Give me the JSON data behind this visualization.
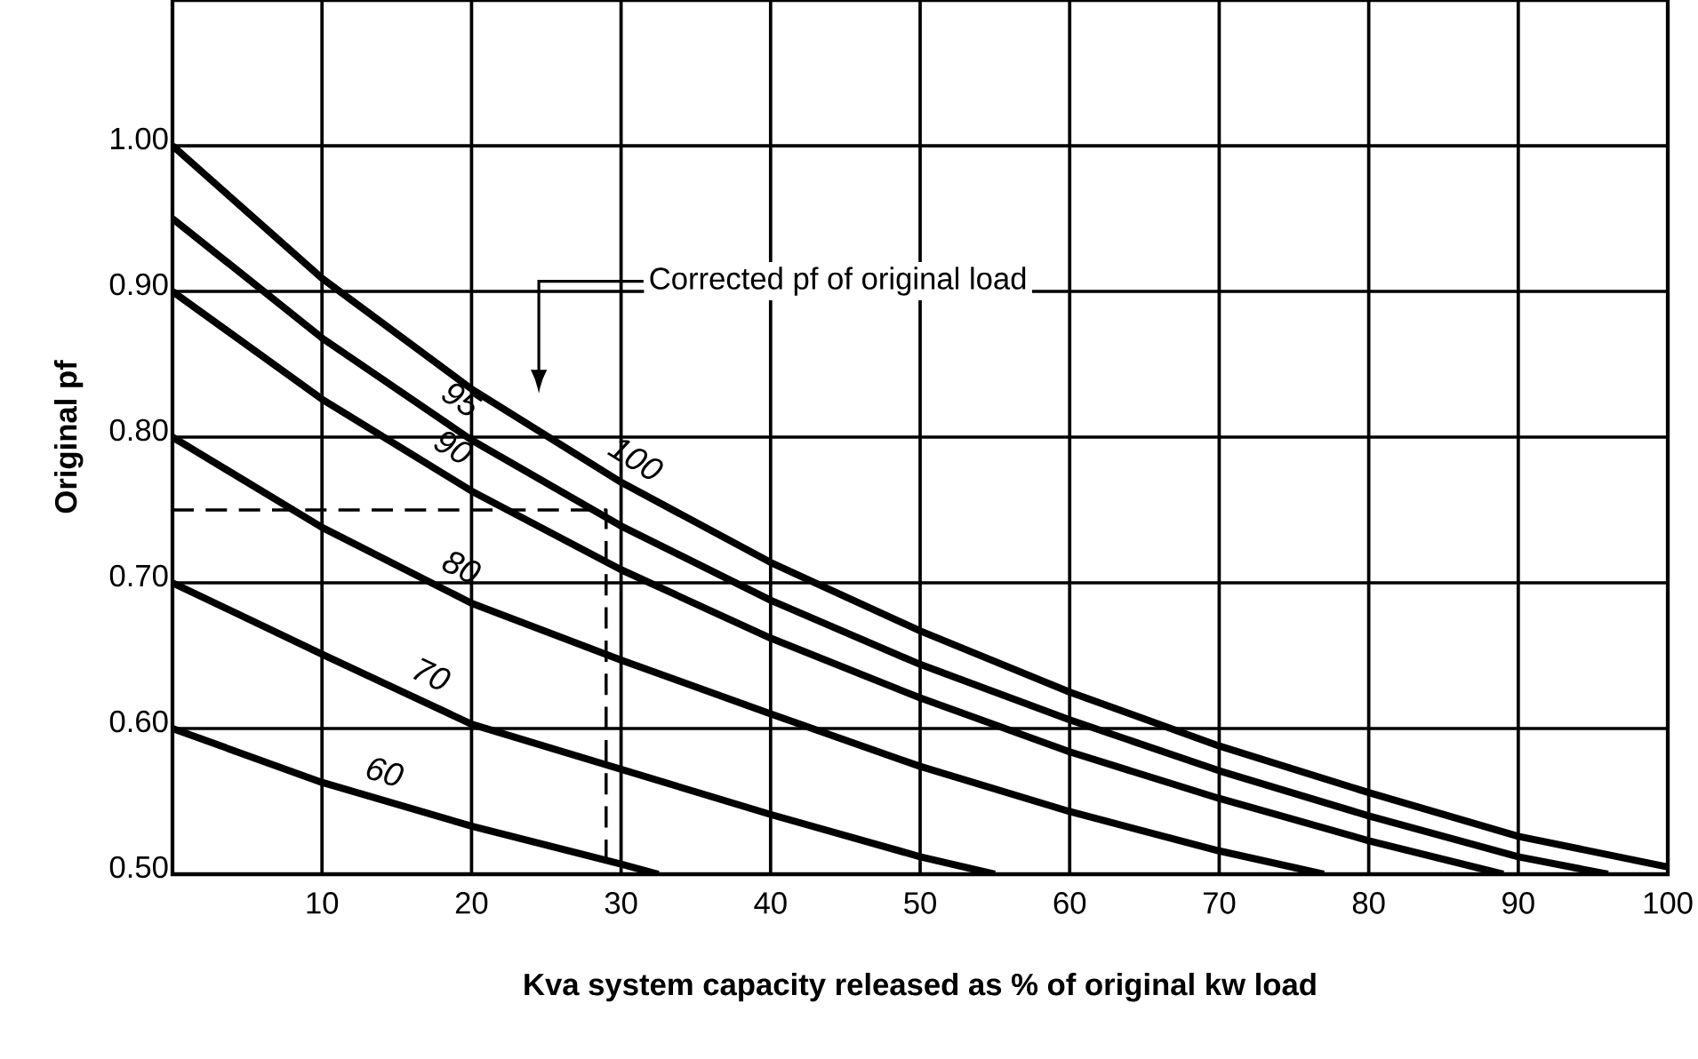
{
  "chart_data": {
    "type": "line",
    "xlabel": "Kva system capacity released as % of original kw load",
    "ylabel": "Original pf",
    "annotations": [
      "Corrected pf of original load"
    ],
    "xlim": [
      0,
      100
    ],
    "ylim": [
      0.5,
      1.1
    ],
    "xticks": [
      10,
      20,
      30,
      40,
      50,
      60,
      70,
      80,
      90,
      100
    ],
    "yticks": [
      {
        "value": 0.5,
        "label": "0.50"
      },
      {
        "value": 0.6,
        "label": "0.60"
      },
      {
        "value": 0.7,
        "label": "0.70"
      },
      {
        "value": 0.8,
        "label": "0.80"
      },
      {
        "value": 0.9,
        "label": "0.90"
      },
      {
        "value": 1.0,
        "label": "1.00"
      },
      {
        "value": 1.1,
        "label": null
      }
    ],
    "grid": true,
    "marker": "none",
    "line_style": "solid",
    "series": [
      {
        "name": "100",
        "color": "#000000",
        "x": [
          0,
          10,
          20,
          30,
          40,
          50,
          60,
          70,
          80,
          90,
          100
        ],
        "values": [
          1.0,
          0.909,
          0.833,
          0.769,
          0.714,
          0.667,
          0.625,
          0.588,
          0.556,
          0.526,
          0.505
        ]
      },
      {
        "name": "95",
        "color": "#000000",
        "x": [
          0,
          10,
          20,
          30,
          40,
          50,
          60,
          70,
          80,
          90,
          96
        ],
        "values": [
          0.95,
          0.868,
          0.798,
          0.739,
          0.688,
          0.644,
          0.606,
          0.571,
          0.54,
          0.512,
          0.5
        ]
      },
      {
        "name": "90",
        "color": "#000000",
        "x": [
          0,
          10,
          20,
          30,
          40,
          50,
          60,
          70,
          80,
          89
        ],
        "values": [
          0.9,
          0.826,
          0.763,
          0.709,
          0.662,
          0.621,
          0.584,
          0.552,
          0.523,
          0.5
        ]
      },
      {
        "name": "80",
        "color": "#000000",
        "x": [
          0,
          10,
          20,
          30,
          40,
          50,
          60,
          70,
          77
        ],
        "values": [
          0.8,
          0.738,
          0.686,
          0.647,
          0.61,
          0.574,
          0.543,
          0.516,
          0.5
        ]
      },
      {
        "name": "70",
        "color": "#000000",
        "x": [
          0,
          10,
          20,
          30,
          40,
          50,
          55
        ],
        "values": [
          0.7,
          0.651,
          0.603,
          0.572,
          0.541,
          0.512,
          0.5
        ]
      },
      {
        "name": "60",
        "color": "#000000",
        "x": [
          0,
          10,
          20,
          30,
          32.5
        ],
        "values": [
          0.6,
          0.563,
          0.533,
          0.507,
          0.5
        ]
      },
      {
        "color": "#000000",
        "line_style": "dashed",
        "x": [
          0,
          29,
          29
        ],
        "values": [
          0.75,
          0.75,
          0.5
        ]
      }
    ]
  }
}
